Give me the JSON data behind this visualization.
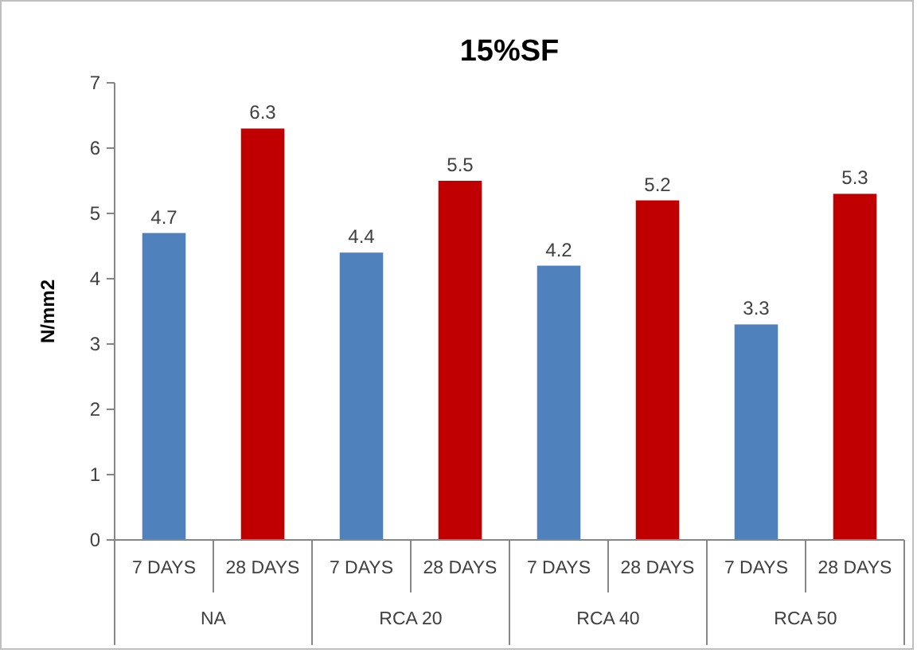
{
  "chart_data": {
    "type": "bar",
    "title": "15%SF",
    "ylabel": "N/mm2",
    "categories": [
      "NA",
      "RCA 20",
      "RCA 40",
      "RCA 50"
    ],
    "series": [
      {
        "name": "7 DAYS",
        "color": "#4f81bd",
        "values": [
          4.7,
          4.4,
          4.2,
          3.3
        ]
      },
      {
        "name": "28 DAYS",
        "color": "#c00000",
        "values": [
          6.3,
          5.5,
          5.2,
          5.3
        ]
      }
    ],
    "ylim": [
      0,
      7
    ],
    "yticks": [
      0,
      1,
      2,
      3,
      4,
      5,
      6,
      7
    ],
    "data_labels": true,
    "grid": false
  }
}
